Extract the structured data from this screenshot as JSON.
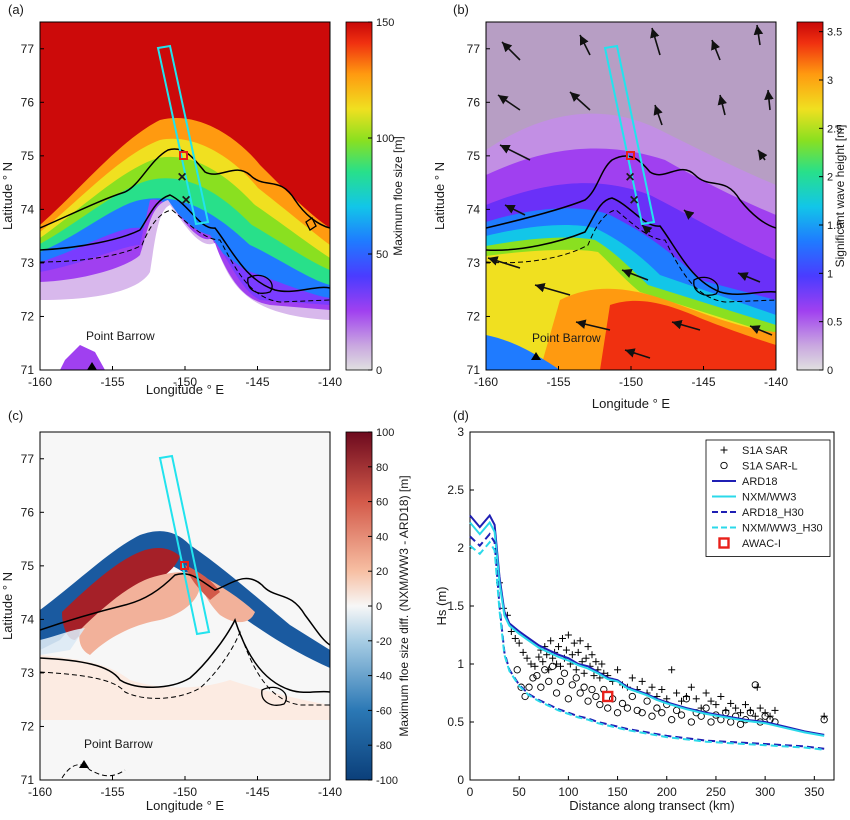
{
  "panels": [
    {
      "tag": "(a)",
      "map": {
        "xlabel": "Longitude ° E",
        "ylabel": "Latitude ° N",
        "xticks": [
          "-160",
          "-155",
          "-150",
          "-145",
          "-140"
        ],
        "yticks": [
          "71",
          "72",
          "73",
          "74",
          "75",
          "76",
          "77"
        ],
        "place_label": "Point Barrow"
      },
      "colorbar": {
        "label": "Maximum floe size [m]",
        "ticks": [
          "0",
          "50",
          "100",
          "150"
        ],
        "range": [
          0,
          150
        ],
        "colormap": "jet-magenta-grey"
      }
    },
    {
      "tag": "(b)",
      "map": {
        "xlabel": "Longitude ° E",
        "ylabel": "Latitude ° N",
        "xticks": [
          "-160",
          "-155",
          "-150",
          "-145",
          "-140"
        ],
        "yticks": [
          "71",
          "72",
          "73",
          "74",
          "75",
          "76",
          "77"
        ],
        "place_label": "Point Barrow"
      },
      "colorbar": {
        "label": "Significant wave height [m]",
        "ticks": [
          "0",
          "0.5",
          "1",
          "1.5",
          "2",
          "2.5",
          "3",
          "3.5"
        ],
        "range": [
          0,
          3.6
        ],
        "colormap": "jet-magenta-grey"
      }
    },
    {
      "tag": "(c)",
      "map": {
        "xlabel": "Longitude ° E",
        "ylabel": "Latitude ° N",
        "xticks": [
          "-160",
          "-155",
          "-150",
          "-145",
          "-140"
        ],
        "yticks": [
          "71",
          "72",
          "73",
          "74",
          "75",
          "76",
          "77"
        ],
        "place_label": "Point Barrow"
      },
      "colorbar": {
        "label": "Maximum floe size diff. (NXM/WW3 - ARD18) [m]",
        "ticks": [
          "-100",
          "-80",
          "-60",
          "-40",
          "-20",
          "0",
          "20",
          "40",
          "60",
          "80",
          "100"
        ],
        "range": [
          -100,
          100
        ],
        "colormap": "blue-white-red"
      }
    }
  ],
  "chart_data": [
    {
      "type": "heatmap",
      "panel": "(a)",
      "title": "",
      "xlabel": "Longitude ° E",
      "ylabel": "Latitude ° N",
      "xlim": [
        -160,
        -140
      ],
      "ylim": [
        71,
        77.5
      ],
      "colorbar_label": "Maximum floe size [m]",
      "color_range": [
        0,
        150
      ]
    },
    {
      "type": "heatmap",
      "panel": "(b)",
      "title": "",
      "xlabel": "Longitude ° E",
      "ylabel": "Latitude ° N",
      "xlim": [
        -160,
        -140
      ],
      "ylim": [
        71,
        77.5
      ],
      "colorbar_label": "Significant wave height [m]",
      "color_range": [
        0,
        3.6
      ]
    },
    {
      "type": "heatmap",
      "panel": "(c)",
      "title": "",
      "xlabel": "Longitude ° E",
      "ylabel": "Latitude ° N",
      "xlim": [
        -160,
        -140
      ],
      "ylim": [
        71,
        77.5
      ],
      "colorbar_label": "Maximum floe size diff. (NXM/WW3 - ARD18) [m]",
      "color_range": [
        -100,
        100
      ]
    },
    {
      "type": "line",
      "panel": "(d)",
      "title": "",
      "xlabel": "Distance along transect (km)",
      "ylabel": "Hs (m)",
      "xlim": [
        0,
        370
      ],
      "ylim": [
        0,
        3
      ],
      "xticks": [
        "0",
        "50",
        "100",
        "150",
        "200",
        "250",
        "300",
        "350"
      ],
      "yticks": [
        "0",
        "0.5",
        "1",
        "1.5",
        "2",
        "2.5",
        "3"
      ],
      "grid": false,
      "legend_position": "top-right",
      "series": [
        {
          "name": "S1A SAR",
          "style": "marker-plus",
          "color": "#000000",
          "x": [
            30,
            34,
            38,
            42,
            46,
            50,
            54,
            58,
            62,
            66,
            70,
            72,
            74,
            76,
            78,
            80,
            82,
            84,
            86,
            88,
            90,
            92,
            94,
            96,
            98,
            100,
            102,
            104,
            106,
            108,
            110,
            112,
            114,
            116,
            118,
            120,
            122,
            124,
            126,
            128,
            130,
            132,
            134,
            136,
            140,
            145,
            150,
            155,
            160,
            165,
            170,
            175,
            180,
            185,
            190,
            195,
            200,
            205,
            210,
            215,
            220,
            225,
            230,
            235,
            240,
            245,
            250,
            255,
            260,
            265,
            270,
            275,
            280,
            285,
            290,
            292,
            295,
            300,
            305,
            310,
            360
          ],
          "y": [
            1.7,
            1.48,
            1.42,
            1.28,
            1.22,
            1.18,
            1.1,
            1.05,
            1.0,
            0.98,
            1.06,
            1.12,
            1.02,
            1.15,
            1.08,
            0.95,
            1.2,
            1.05,
            1.1,
            1.0,
            1.15,
            0.98,
            1.22,
            1.05,
            1.12,
            1.25,
            1.0,
            1.08,
            1.18,
            0.95,
            1.1,
            1.2,
            1.02,
            0.92,
            1.05,
            1.15,
            0.98,
            1.08,
            0.9,
            1.02,
            0.95,
            0.88,
            1.0,
            0.92,
            0.9,
            0.85,
            0.95,
            0.82,
            0.8,
            0.88,
            0.78,
            0.85,
            0.75,
            0.8,
            0.72,
            0.78,
            0.7,
            0.95,
            0.75,
            0.68,
            0.72,
            0.8,
            0.7,
            0.62,
            0.75,
            0.68,
            0.65,
            0.72,
            0.6,
            0.66,
            0.62,
            0.58,
            0.65,
            0.6,
            0.55,
            0.8,
            0.62,
            0.58,
            0.55,
            0.6,
            0.55
          ]
        },
        {
          "name": "S1A SAR-L",
          "style": "marker-circle",
          "color": "#000000",
          "x": [
            48,
            52,
            56,
            60,
            64,
            68,
            72,
            76,
            80,
            84,
            88,
            92,
            96,
            100,
            104,
            108,
            112,
            116,
            120,
            124,
            128,
            132,
            136,
            140,
            145,
            150,
            155,
            160,
            165,
            170,
            175,
            180,
            185,
            190,
            195,
            200,
            205,
            210,
            215,
            220,
            225,
            230,
            235,
            240,
            245,
            250,
            255,
            260,
            265,
            270,
            275,
            280,
            285,
            290,
            295,
            300,
            305,
            310,
            360
          ],
          "y": [
            0.95,
            0.8,
            0.72,
            0.8,
            0.88,
            0.9,
            0.8,
            0.95,
            0.85,
            0.98,
            0.75,
            0.85,
            0.92,
            0.7,
            0.82,
            0.88,
            0.75,
            0.8,
            0.68,
            0.78,
            0.72,
            0.65,
            0.78,
            0.62,
            0.7,
            0.58,
            0.66,
            0.62,
            0.72,
            0.6,
            0.58,
            0.68,
            0.55,
            0.62,
            0.58,
            0.65,
            0.52,
            0.6,
            0.56,
            0.7,
            0.5,
            0.58,
            0.55,
            0.62,
            0.5,
            0.56,
            0.52,
            0.58,
            0.5,
            0.55,
            0.48,
            0.52,
            0.58,
            0.82,
            0.5,
            0.55,
            0.52,
            0.5,
            0.52
          ]
        },
        {
          "name": "ARD18",
          "style": "solid",
          "color": "#1f1fb4",
          "x": [
            0,
            10,
            20,
            25,
            30,
            35,
            40,
            50,
            60,
            70,
            80,
            90,
            100,
            110,
            120,
            130,
            140,
            150,
            160,
            170,
            180,
            190,
            200,
            220,
            240,
            260,
            280,
            300,
            320,
            340,
            360
          ],
          "y": [
            2.28,
            2.18,
            2.28,
            2.2,
            1.75,
            1.45,
            1.35,
            1.28,
            1.22,
            1.16,
            1.12,
            1.08,
            1.05,
            1.0,
            0.98,
            0.93,
            0.88,
            0.86,
            0.8,
            0.77,
            0.74,
            0.7,
            0.67,
            0.62,
            0.58,
            0.55,
            0.52,
            0.5,
            0.46,
            0.42,
            0.39
          ]
        },
        {
          "name": "NXM/WW3",
          "style": "solid",
          "color": "#2bd9ea",
          "x": [
            0,
            10,
            20,
            25,
            30,
            35,
            40,
            50,
            60,
            70,
            80,
            90,
            100,
            110,
            120,
            130,
            140,
            150,
            160,
            170,
            180,
            190,
            200,
            220,
            240,
            260,
            280,
            300,
            320,
            340,
            360
          ],
          "y": [
            2.22,
            2.12,
            2.22,
            2.14,
            1.7,
            1.42,
            1.33,
            1.26,
            1.2,
            1.14,
            1.1,
            1.06,
            1.03,
            0.99,
            0.96,
            0.92,
            0.87,
            0.85,
            0.79,
            0.76,
            0.73,
            0.69,
            0.66,
            0.61,
            0.57,
            0.54,
            0.51,
            0.49,
            0.45,
            0.41,
            0.38
          ]
        },
        {
          "name": "ARD18_H30",
          "style": "dashed",
          "color": "#1f1fb4",
          "x": [
            0,
            10,
            20,
            25,
            30,
            35,
            40,
            50,
            60,
            70,
            80,
            90,
            100,
            110,
            120,
            130,
            140,
            150,
            160,
            180,
            200,
            220,
            240,
            260,
            280,
            300,
            320,
            340,
            360
          ],
          "y": [
            2.1,
            2.02,
            2.12,
            2.05,
            1.5,
            1.1,
            0.95,
            0.82,
            0.74,
            0.69,
            0.65,
            0.61,
            0.58,
            0.55,
            0.53,
            0.5,
            0.48,
            0.46,
            0.44,
            0.41,
            0.38,
            0.36,
            0.34,
            0.33,
            0.32,
            0.31,
            0.3,
            0.29,
            0.27
          ]
        },
        {
          "name": "NXM/WW3_H30",
          "style": "dashed",
          "color": "#2bd9ea",
          "x": [
            0,
            10,
            20,
            25,
            30,
            35,
            40,
            50,
            60,
            70,
            80,
            90,
            100,
            110,
            120,
            130,
            140,
            150,
            160,
            180,
            200,
            220,
            240,
            260,
            280,
            300,
            320,
            340,
            360
          ],
          "y": [
            2.02,
            1.95,
            2.05,
            1.98,
            1.46,
            1.08,
            0.94,
            0.81,
            0.73,
            0.68,
            0.64,
            0.6,
            0.57,
            0.54,
            0.52,
            0.49,
            0.47,
            0.45,
            0.43,
            0.4,
            0.37,
            0.35,
            0.33,
            0.32,
            0.31,
            0.3,
            0.29,
            0.28,
            0.26
          ]
        },
        {
          "name": "AWAC-I",
          "style": "marker-square",
          "color": "#e8201a",
          "x": [
            140
          ],
          "y": [
            0.72
          ]
        }
      ]
    }
  ]
}
